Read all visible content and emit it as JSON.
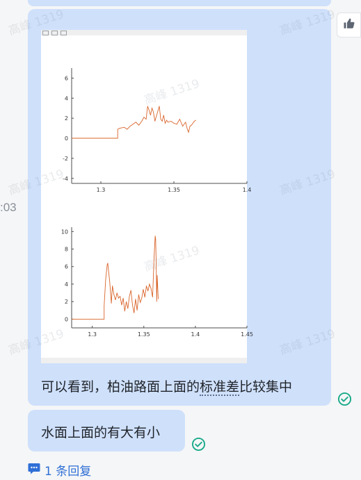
{
  "watermark": "高峰 1319",
  "timestamp_fragment": ":03",
  "message_1": {
    "text_before": "可以看到，柏油路面上面的",
    "term": "标准差",
    "text_after": "比较集中"
  },
  "message_2": {
    "text": "水面上面的有大有小"
  },
  "reply_link": {
    "count_label": "1 条回复"
  },
  "icons": {
    "reaction": "thumbs-up-icon",
    "status": "check-circle-icon",
    "reply": "comment-icon"
  },
  "colors": {
    "bubble": "#cfe0fb",
    "status_green": "#1aaa8a",
    "link_blue": "#2f6fd6",
    "plot_line": "#d9642a"
  },
  "chart_data": [
    {
      "type": "line",
      "title": "",
      "xlabel": "",
      "ylabel": "",
      "xlim": [
        1.28,
        1.4
      ],
      "ylim": [
        -4.5,
        7
      ],
      "x_ticks": [
        "1.3",
        "1.35",
        "1.4"
      ],
      "y_ticks": [
        "-4",
        "-2",
        "0",
        "2",
        "4",
        "6"
      ],
      "grid": false,
      "series": [
        {
          "x": [
            1.28,
            1.299,
            1.3115,
            1.3115,
            1.313,
            1.316,
            1.318,
            1.32,
            1.322,
            1.324,
            1.326,
            1.328,
            1.3295,
            1.331,
            1.332,
            1.333,
            1.334,
            1.335,
            1.336,
            1.337,
            1.338,
            1.339,
            1.34,
            1.341,
            1.342,
            1.343,
            1.344,
            1.345,
            1.346,
            1.348,
            1.35,
            1.352,
            1.354,
            1.356,
            1.358,
            1.359,
            1.36,
            1.361,
            1.362,
            1.363,
            1.364,
            1.365
          ],
          "y": [
            0,
            0,
            0,
            0.9,
            1.0,
            1.1,
            0.9,
            1.2,
            1.4,
            1.6,
            1.3,
            1.7,
            2.1,
            1.9,
            3.2,
            2.8,
            2.3,
            3.0,
            2.6,
            1.7,
            2.2,
            2.7,
            3.2,
            1.9,
            1.7,
            2.3,
            1.5,
            1.8,
            1.6,
            1.7,
            1.5,
            1.4,
            1.9,
            1.2,
            1.6,
            1.0,
            0.6,
            1.2,
            1.3,
            1.5,
            1.7,
            1.8
          ]
        }
      ]
    },
    {
      "type": "line",
      "title": "",
      "xlabel": "",
      "ylabel": "",
      "xlim": [
        1.28,
        1.45
      ],
      "ylim": [
        -1,
        10.5
      ],
      "x_ticks": [
        "1.3",
        "1.35",
        "1.4",
        "1.45"
      ],
      "y_ticks": [
        "0",
        "2",
        "4",
        "6",
        "8",
        "10"
      ],
      "grid": false,
      "series": [
        {
          "x": [
            1.28,
            1.299,
            1.3115,
            1.3115,
            1.313,
            1.3145,
            1.315,
            1.317,
            1.3185,
            1.3195,
            1.321,
            1.3225,
            1.324,
            1.3255,
            1.327,
            1.3285,
            1.33,
            1.3315,
            1.333,
            1.3345,
            1.336,
            1.3375,
            1.339,
            1.3405,
            1.342,
            1.3435,
            1.345,
            1.3465,
            1.348,
            1.3495,
            1.351,
            1.3525,
            1.354,
            1.3555,
            1.357,
            1.3585,
            1.36,
            1.361,
            1.3615,
            1.362,
            1.3625,
            1.363,
            1.3635,
            1.364
          ],
          "y": [
            0,
            0,
            0,
            1.5,
            4.5,
            6.2,
            6.4,
            4.2,
            1.8,
            3.8,
            2.8,
            2.2,
            3.0,
            2.4,
            2.6,
            1.6,
            2.4,
            0.9,
            2.0,
            1.2,
            2.6,
            3.3,
            1.6,
            0.7,
            2.3,
            1.0,
            2.8,
            1.9,
            2.4,
            3.4,
            2.5,
            3.8,
            3.2,
            4.0,
            3.5,
            2.5,
            7.2,
            9.5,
            9.1,
            6.0,
            2.0,
            5.0,
            3.5,
            2.3
          ]
        }
      ]
    }
  ]
}
